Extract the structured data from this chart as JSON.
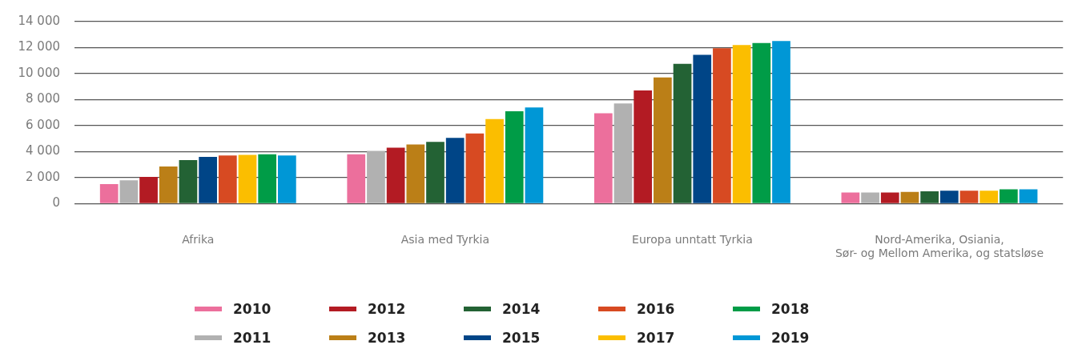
{
  "chart_data": {
    "type": "bar",
    "categories": [
      "Afrika",
      "Asia med Tyrkia",
      "Europa unntatt Tyrkia",
      "Nord-Amerika, Osiania,\nSør- og Mellom Amerika, og statsløse"
    ],
    "series": [
      {
        "name": "2010",
        "color": "#ec6f9c",
        "values": [
          1500,
          3800,
          6950,
          850
        ]
      },
      {
        "name": "2011",
        "color": "#b1b1b1",
        "values": [
          1800,
          4050,
          7700,
          850
        ]
      },
      {
        "name": "2012",
        "color": "#b31b23",
        "values": [
          2050,
          4300,
          8700,
          850
        ]
      },
      {
        "name": "2013",
        "color": "#bb7f17",
        "values": [
          2850,
          4550,
          9700,
          900
        ]
      },
      {
        "name": "2014",
        "color": "#236234",
        "values": [
          3350,
          4750,
          10750,
          950
        ]
      },
      {
        "name": "2015",
        "color": "#004587",
        "values": [
          3600,
          5050,
          11450,
          1000
        ]
      },
      {
        "name": "2016",
        "color": "#d74a22",
        "values": [
          3700,
          5400,
          11950,
          1000
        ]
      },
      {
        "name": "2017",
        "color": "#fbbe00",
        "values": [
          3750,
          6500,
          12200,
          1000
        ]
      },
      {
        "name": "2018",
        "color": "#009c47",
        "values": [
          3800,
          7100,
          12350,
          1100
        ]
      },
      {
        "name": "2019",
        "color": "#0097d6",
        "values": [
          3700,
          7400,
          12500,
          1100
        ]
      }
    ],
    "ylim": [
      0,
      14000
    ],
    "yticks": [
      {
        "value": 0,
        "label": "0"
      },
      {
        "value": 2000,
        "label": "2 000"
      },
      {
        "value": 4000,
        "label": "4 000"
      },
      {
        "value": 6000,
        "label": "6 000"
      },
      {
        "value": 8000,
        "label": "8 000"
      },
      {
        "value": 10000,
        "label": "10 000"
      },
      {
        "value": 12000,
        "label": "12 000"
      },
      {
        "value": 14000,
        "label": "14 000"
      }
    ],
    "grid": "y",
    "legend": "bottom"
  }
}
